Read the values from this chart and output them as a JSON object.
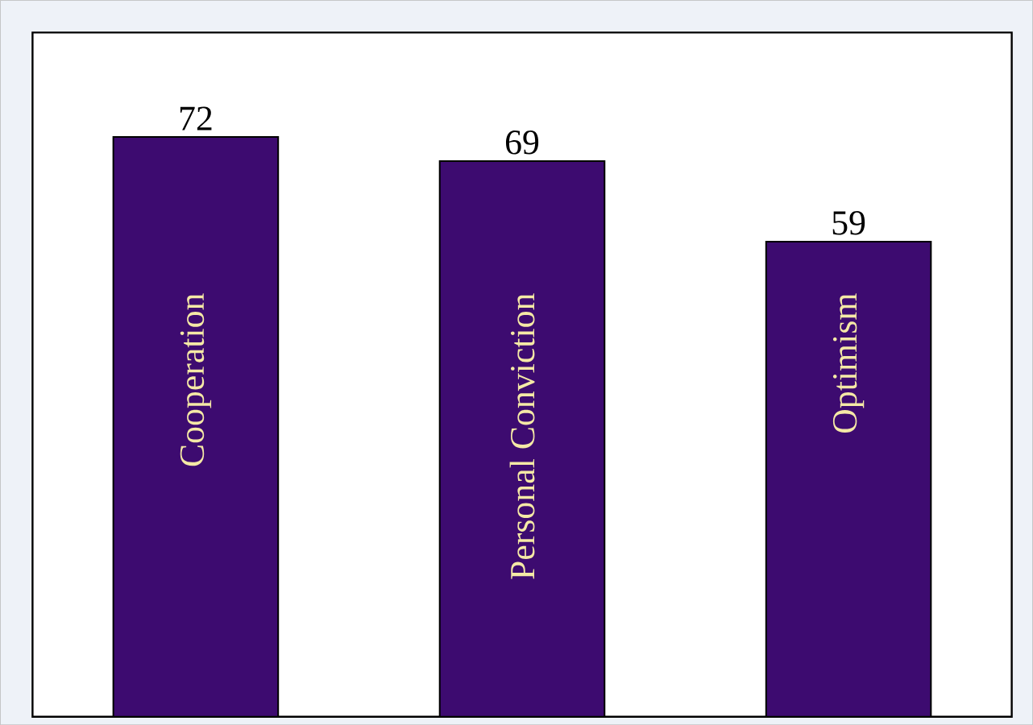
{
  "chart_data": {
    "type": "bar",
    "categories": [
      "Cooperation",
      "Personal Conviction",
      "Optimism"
    ],
    "values": [
      72,
      69,
      59
    ],
    "color": "#3d0b70",
    "data_labels": true
  }
}
